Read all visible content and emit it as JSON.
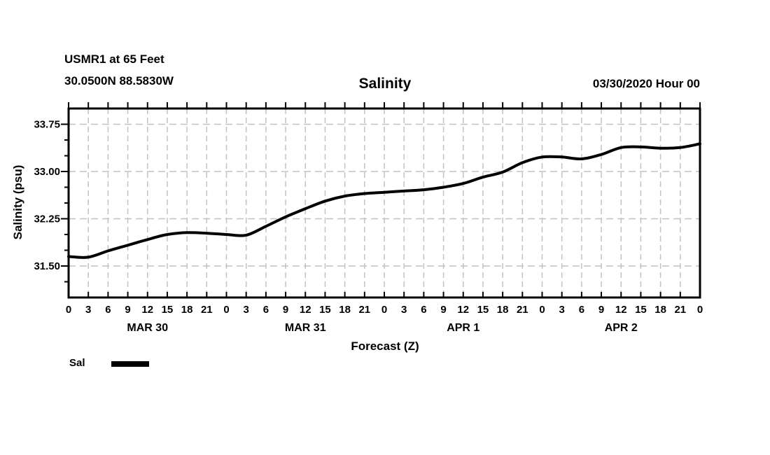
{
  "header": {
    "station_line": "USMR1 at 65 Feet",
    "coords_line": "30.0500N 88.5830W",
    "title": "Salinity",
    "datetime": "03/30/2020 Hour 00"
  },
  "legend": {
    "label": "Sal"
  },
  "chart_data": {
    "type": "line",
    "title": "Salinity",
    "xlabel": "Forecast (Z)",
    "ylabel": "Salinity (psu)",
    "xlim": [
      0,
      96
    ],
    "ylim": [
      31.0,
      34.0
    ],
    "grid": true,
    "legend_position": "bottom-left",
    "x_hours": [
      0,
      3,
      6,
      9,
      12,
      15,
      18,
      21,
      24,
      27,
      30,
      33,
      36,
      39,
      42,
      45,
      48,
      51,
      54,
      57,
      60,
      63,
      66,
      69,
      72,
      75,
      78,
      81,
      84,
      87,
      90,
      93,
      96
    ],
    "x_tick_labels": [
      "0",
      "3",
      "6",
      "9",
      "12",
      "15",
      "18",
      "21",
      "0",
      "3",
      "6",
      "9",
      "12",
      "15",
      "18",
      "21",
      "0",
      "3",
      "6",
      "9",
      "12",
      "15",
      "18",
      "21",
      "0",
      "3",
      "6",
      "9",
      "12",
      "15",
      "18",
      "21",
      "0"
    ],
    "day_labels": [
      {
        "label": "MAR 30",
        "center_hour": 12
      },
      {
        "label": "MAR 31",
        "center_hour": 36
      },
      {
        "label": "APR 1",
        "center_hour": 60
      },
      {
        "label": "APR 2",
        "center_hour": 84
      }
    ],
    "y_ticks_major": [
      31.5,
      32.25,
      33.0,
      33.75
    ],
    "y_tick_labels": [
      "31.50",
      "32.25",
      "33.00",
      "33.75"
    ],
    "y_minor_step": 0.25,
    "series": [
      {
        "name": "Sal",
        "values": [
          31.65,
          31.64,
          31.74,
          31.83,
          31.92,
          32.0,
          32.03,
          32.02,
          32.0,
          31.99,
          32.13,
          32.28,
          32.41,
          32.53,
          32.61,
          32.65,
          32.67,
          32.69,
          32.71,
          32.75,
          32.81,
          32.91,
          32.99,
          33.14,
          33.23,
          33.23,
          33.2,
          33.27,
          33.38,
          33.39,
          33.37,
          33.38,
          33.44
        ]
      }
    ],
    "line_color": "#000000",
    "grid_color": "#c2c2c2",
    "frame_color": "#000000"
  }
}
